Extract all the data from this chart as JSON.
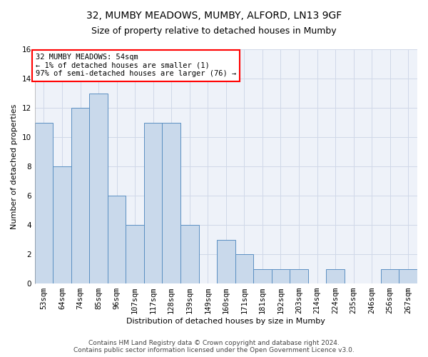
{
  "title1": "32, MUMBY MEADOWS, MUMBY, ALFORD, LN13 9GF",
  "title2": "Size of property relative to detached houses in Mumby",
  "xlabel": "Distribution of detached houses by size in Mumby",
  "ylabel": "Number of detached properties",
  "categories": [
    "53sqm",
    "64sqm",
    "74sqm",
    "85sqm",
    "96sqm",
    "107sqm",
    "117sqm",
    "128sqm",
    "139sqm",
    "149sqm",
    "160sqm",
    "171sqm",
    "181sqm",
    "192sqm",
    "203sqm",
    "214sqm",
    "224sqm",
    "235sqm",
    "246sqm",
    "256sqm",
    "267sqm"
  ],
  "values": [
    11,
    8,
    12,
    13,
    6,
    4,
    11,
    11,
    4,
    0,
    3,
    2,
    1,
    1,
    1,
    0,
    1,
    0,
    0,
    1,
    1
  ],
  "bar_color": "#c9d9eb",
  "bar_edge_color": "#5a8fc2",
  "annotation_text": "32 MUMBY MEADOWS: 54sqm\n← 1% of detached houses are smaller (1)\n97% of semi-detached houses are larger (76) →",
  "annotation_box_color": "white",
  "annotation_box_edge_color": "red",
  "ylim": [
    0,
    16
  ],
  "yticks": [
    0,
    2,
    4,
    6,
    8,
    10,
    12,
    14,
    16
  ],
  "grid_color": "#d0d8e8",
  "background_color": "#eef2f9",
  "footer1": "Contains HM Land Registry data © Crown copyright and database right 2024.",
  "footer2": "Contains public sector information licensed under the Open Government Licence v3.0.",
  "title1_fontsize": 10,
  "title2_fontsize": 9,
  "axis_label_fontsize": 8,
  "tick_fontsize": 7.5,
  "annotation_fontsize": 7.5,
  "footer_fontsize": 6.5
}
